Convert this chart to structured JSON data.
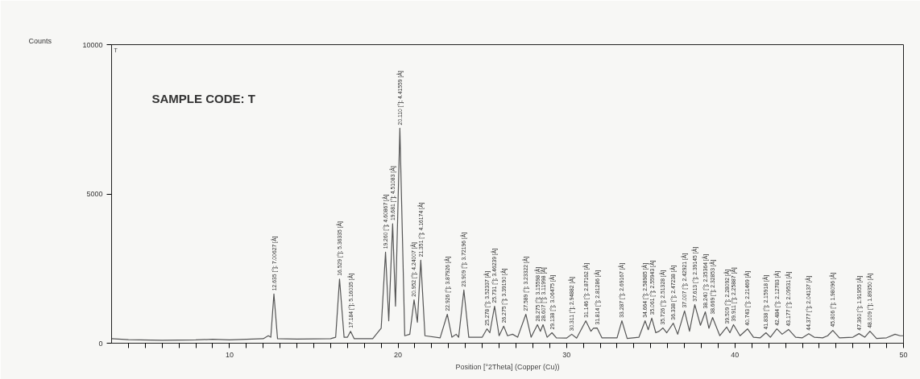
{
  "chart_data": {
    "type": "line",
    "title": "SAMPLE CODE: T",
    "xlabel": "Position [°2Theta] (Copper (Cu))",
    "ylabel": "Counts",
    "xlim": [
      3,
      50
    ],
    "ylim": [
      0,
      10000
    ],
    "yticks": [
      0,
      5000,
      10000
    ],
    "xticks": [
      {
        "value": 4,
        "label": null
      },
      {
        "value": 5,
        "label": null
      },
      {
        "value": 6,
        "label": null
      },
      {
        "value": 7,
        "label": null
      },
      {
        "value": 8,
        "label": null
      },
      {
        "value": 9,
        "label": null
      },
      10,
      {
        "value": 11,
        "label": null
      },
      {
        "value": 12,
        "label": null
      },
      {
        "value": 13,
        "label": null
      },
      {
        "value": 14,
        "label": null
      },
      {
        "value": 15,
        "label": null
      },
      {
        "value": 16,
        "label": null
      },
      {
        "value": 17,
        "label": null
      },
      {
        "value": 18,
        "label": null
      },
      {
        "value": 19,
        "label": null
      },
      20,
      {
        "value": 21,
        "label": null
      },
      {
        "value": 22,
        "label": null
      },
      {
        "value": 23,
        "label": null
      },
      {
        "value": 24,
        "label": null
      },
      {
        "value": 25,
        "label": null
      },
      {
        "value": 26,
        "label": null
      },
      {
        "value": 27,
        "label": null
      },
      {
        "value": 28,
        "label": null
      },
      {
        "value": 29,
        "label": null
      },
      30,
      {
        "value": 31,
        "label": null
      },
      {
        "value": 32,
        "label": null
      },
      {
        "value": 33,
        "label": null
      },
      {
        "value": 34,
        "label": null
      },
      {
        "value": 35,
        "label": null
      },
      {
        "value": 36,
        "label": null
      },
      {
        "value": 37,
        "label": null
      },
      {
        "value": 38,
        "label": null
      },
      {
        "value": 39,
        "label": null
      },
      40,
      {
        "value": 41,
        "label": null
      },
      {
        "value": 42,
        "label": null
      },
      {
        "value": 43,
        "label": null
      },
      {
        "value": 44,
        "label": null
      },
      {
        "value": 45,
        "label": null
      },
      {
        "value": 46,
        "label": null
      },
      {
        "value": 47,
        "label": null
      },
      {
        "value": 48,
        "label": null
      },
      {
        "value": 49,
        "label": null
      },
      50
    ],
    "grid": false,
    "marker": "none",
    "line_style": "solid",
    "series": [
      {
        "color": "#555555",
        "x": [
          3.0,
          4,
          6,
          8,
          9,
          10,
          11,
          12,
          12.3,
          12.45,
          12.635,
          12.85,
          14,
          16,
          16.3,
          16.529,
          16.8,
          17.0,
          17.184,
          17.4,
          18.5,
          19.0,
          19.26,
          19.45,
          19.681,
          19.85,
          20.11,
          20.4,
          20.7,
          20.952,
          21.15,
          21.351,
          21.6,
          22.5,
          22.926,
          23.2,
          23.45,
          23.6,
          23.909,
          24.2,
          25.0,
          25.278,
          25.45,
          25.731,
          26.0,
          26.275,
          26.5,
          26.8,
          27.1,
          27.589,
          27.9,
          28.275,
          28.45,
          28.607,
          28.85,
          29.138,
          29.4,
          30.0,
          30.311,
          30.6,
          31.146,
          31.45,
          31.6,
          31.814,
          32.1,
          33.0,
          33.287,
          33.6,
          34.3,
          34.664,
          34.85,
          35.061,
          35.3,
          35.5,
          35.726,
          35.95,
          36.338,
          36.6,
          37.007,
          37.3,
          37.613,
          37.95,
          38.24,
          38.45,
          38.669,
          39.1,
          39.509,
          39.7,
          39.911,
          40.3,
          40.743,
          41.1,
          41.5,
          41.838,
          42.1,
          42.484,
          42.8,
          43.177,
          43.6,
          44.0,
          44.377,
          44.7,
          45.2,
          45.5,
          45.806,
          46.2,
          47.0,
          47.36,
          47.7,
          48.009,
          48.4,
          49.0,
          49.5,
          49.8,
          50
        ],
        "values": [
          150,
          120,
          100,
          110,
          130,
          110,
          130,
          150,
          250,
          200,
          1650,
          150,
          140,
          150,
          200,
          2150,
          200,
          200,
          400,
          150,
          150,
          500,
          3050,
          750,
          4000,
          1240,
          7200,
          250,
          300,
          1450,
          700,
          2780,
          250,
          180,
          970,
          200,
          300,
          200,
          1780,
          200,
          200,
          480,
          350,
          1240,
          250,
          570,
          250,
          300,
          200,
          970,
          200,
          620,
          400,
          620,
          200,
          350,
          180,
          170,
          300,
          170,
          750,
          400,
          500,
          510,
          180,
          180,
          750,
          160,
          200,
          750,
          450,
          840,
          350,
          400,
          510,
          350,
          670,
          300,
          1080,
          400,
          1290,
          600,
          1050,
          500,
          860,
          250,
          540,
          350,
          620,
          250,
          480,
          200,
          180,
          350,
          200,
          480,
          300,
          460,
          200,
          180,
          320,
          200,
          180,
          250,
          430,
          180,
          200,
          320,
          200,
          400,
          160,
          180,
          300,
          250,
          250
        ]
      }
    ],
    "annotations": [
      "T",
      {
        "text": "12.635 [°]; 7.00627 [Å]",
        "x": 12.635,
        "y": 1650
      },
      {
        "text": "16.529 [°]; 5.36335 [Å]",
        "x": 16.529,
        "y": 2150
      },
      {
        "text": "17.184 [°]; 5.16035 [Å]",
        "x": 17.184,
        "y": 400
      },
      {
        "text": "19.260 [°]; 4.60867 [Å]",
        "x": 19.26,
        "y": 3050
      },
      {
        "text": "19.681 [°]; 4.51083 [Å]",
        "x": 19.681,
        "y": 4000
      },
      {
        "text": "20.110 [°]; 4.41559 [Å]",
        "x": 20.11,
        "y": 7200
      },
      {
        "text": "20.952 [°]; 4.24007 [Å]",
        "x": 20.952,
        "y": 1450
      },
      {
        "text": "21.351 [°]; 4.16174 [Å]",
        "x": 21.351,
        "y": 2780
      },
      {
        "text": "22.926 [°]; 3.87926 [Å]",
        "x": 22.926,
        "y": 970
      },
      {
        "text": "23.909 [°]; 3.72196 [Å]",
        "x": 23.909,
        "y": 1780
      },
      {
        "text": "25.278 [°]; 3.52337 [Å]",
        "x": 25.278,
        "y": 480
      },
      {
        "text": "25.731 [°]; 3.46239 [Å]",
        "x": 25.731,
        "y": 1240
      },
      {
        "text": "26.275 [°]; 3.39190 [Å]",
        "x": 26.275,
        "y": 570
      },
      {
        "text": "27.589 [°]; 3.23322 [Å]",
        "x": 27.589,
        "y": 970
      },
      {
        "text": "28.275 [°]; 3.15598 [Å]",
        "x": 28.275,
        "y": 620
      },
      {
        "text": "28.607 [°]; 3.11998 [Å]",
        "x": 28.607,
        "y": 620
      },
      {
        "text": "29.138 [°]; 3.06475 [Å]",
        "x": 29.138,
        "y": 350
      },
      {
        "text": "30.311 [°]; 2.94882 [Å]",
        "x": 30.311,
        "y": 300
      },
      {
        "text": "31.146 [°]; 2.87162 [Å]",
        "x": 31.146,
        "y": 750
      },
      {
        "text": "31.814 [°]; 2.81286 [Å]",
        "x": 31.814,
        "y": 510
      },
      {
        "text": "33.287 [°]; 2.69167 [Å]",
        "x": 33.287,
        "y": 750
      },
      {
        "text": "34.664 [°]; 2.58985 [Å]",
        "x": 34.664,
        "y": 750
      },
      {
        "text": "35.061 [°]; 2.55943 [Å]",
        "x": 35.061,
        "y": 840
      },
      {
        "text": "35.726 [°]; 2.51328 [Å]",
        "x": 35.726,
        "y": 510
      },
      {
        "text": "36.338 [°]; 2.47238 [Å]",
        "x": 36.338,
        "y": 670
      },
      {
        "text": "37.007 [°]; 2.42921 [Å]",
        "x": 37.007,
        "y": 1080
      },
      {
        "text": "37.613 [°]; 2.39145 [Å]",
        "x": 37.613,
        "y": 1290
      },
      {
        "text": "38.240 [°]; 2.35364 [Å]",
        "x": 38.24,
        "y": 1050
      },
      {
        "text": "38.669 [°]; 2.32853 [Å]",
        "x": 38.669,
        "y": 860
      },
      {
        "text": "39.509 [°]; 2.28092 [Å]",
        "x": 39.509,
        "y": 540
      },
      {
        "text": "39.911 [°]; 2.25887 [Å]",
        "x": 39.911,
        "y": 620
      },
      {
        "text": "40.743 [°]; 2.21469 [Å]",
        "x": 40.743,
        "y": 480
      },
      {
        "text": "41.838 [°]; 2.15918 [Å]",
        "x": 41.838,
        "y": 350
      },
      {
        "text": "42.484 [°]; 2.12783 [Å]",
        "x": 42.484,
        "y": 480
      },
      {
        "text": "43.177 [°]; 2.09531 [Å]",
        "x": 43.177,
        "y": 460
      },
      {
        "text": "44.377 [°]; 2.04137 [Å]",
        "x": 44.377,
        "y": 320
      },
      {
        "text": "45.806 [°]; 1.98096 [Å]",
        "x": 45.806,
        "y": 430
      },
      {
        "text": "47.360 [°]; 1.91955 [Å]",
        "x": 47.36,
        "y": 320
      },
      {
        "text": "48.009 [°]; 1.89350 [Å]",
        "x": 48.009,
        "y": 400
      }
    ]
  }
}
